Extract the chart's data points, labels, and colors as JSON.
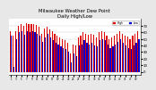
{
  "title": "Milwaukee Weather Dew Point\nDaily High/Low",
  "title_fontsize": 3.8,
  "title_color": "#000000",
  "bg_color": "#e8e8e8",
  "plot_bg_color": "#ffffff",
  "bar_width": 0.4,
  "ylim": [
    -5,
    80
  ],
  "ytick_right": true,
  "high_color": "#dd0000",
  "low_color": "#0000cc",
  "legend_high": "High",
  "legend_low": "Low",
  "high_values": [
    62,
    55,
    62,
    70,
    72,
    70,
    74,
    73,
    73,
    72,
    71,
    69,
    58,
    66,
    68,
    65,
    61,
    58,
    55,
    52,
    50,
    48,
    44,
    28,
    42,
    40,
    52,
    55,
    60,
    58,
    56,
    58,
    56,
    52,
    60,
    62,
    60,
    55,
    50,
    52,
    55,
    58,
    62,
    58,
    55,
    53,
    50,
    55,
    58,
    62
  ],
  "low_values": [
    55,
    8,
    50,
    60,
    62,
    56,
    62,
    60,
    62,
    60,
    58,
    55,
    45,
    52,
    58,
    52,
    48,
    44,
    42,
    38,
    36,
    34,
    30,
    14,
    28,
    24,
    40,
    42,
    48,
    44,
    42,
    44,
    40,
    38,
    48,
    50,
    48,
    42,
    36,
    38,
    42,
    45,
    50,
    44,
    40,
    36,
    34,
    40,
    44,
    50
  ]
}
